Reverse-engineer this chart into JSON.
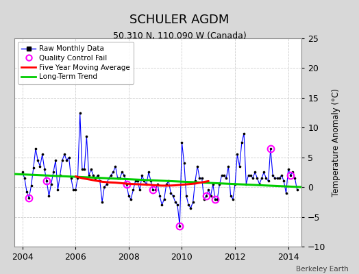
{
  "title": "SCHULER AGDM",
  "subtitle": "50.310 N, 110.090 W (Canada)",
  "ylabel": "Temperature Anomaly (°C)",
  "credit": "Berkeley Earth",
  "ylim": [
    -10,
    25
  ],
  "yticks": [
    -10,
    -5,
    0,
    5,
    10,
    15,
    20,
    25
  ],
  "xlim": [
    2003.7,
    2014.5
  ],
  "xticks": [
    2004,
    2006,
    2008,
    2010,
    2012,
    2014
  ],
  "bg_color": "#d8d8d8",
  "plot_bg_color": "#ffffff",
  "grid_color": "#cccccc",
  "raw_color": "#0000ff",
  "raw_marker_color": "#000000",
  "ma_color": "#ff0000",
  "trend_color": "#00cc00",
  "qc_color": "#ff00ff",
  "raw_x": [
    2004.0,
    2004.083,
    2004.167,
    2004.25,
    2004.333,
    2004.417,
    2004.5,
    2004.583,
    2004.667,
    2004.75,
    2004.833,
    2004.917,
    2005.0,
    2005.083,
    2005.167,
    2005.25,
    2005.333,
    2005.417,
    2005.5,
    2005.583,
    2005.667,
    2005.75,
    2005.833,
    2005.917,
    2006.0,
    2006.083,
    2006.167,
    2006.25,
    2006.333,
    2006.417,
    2006.5,
    2006.583,
    2006.667,
    2006.75,
    2006.833,
    2006.917,
    2007.0,
    2007.083,
    2007.167,
    2007.25,
    2007.333,
    2007.417,
    2007.5,
    2007.583,
    2007.667,
    2007.75,
    2007.833,
    2007.917,
    2008.0,
    2008.083,
    2008.167,
    2008.25,
    2008.333,
    2008.417,
    2008.5,
    2008.583,
    2008.667,
    2008.75,
    2008.833,
    2008.917,
    2009.0,
    2009.083,
    2009.167,
    2009.25,
    2009.333,
    2009.417,
    2009.5,
    2009.583,
    2009.667,
    2009.75,
    2009.833,
    2009.917,
    2010.0,
    2010.083,
    2010.167,
    2010.25,
    2010.333,
    2010.417,
    2010.5,
    2010.583,
    2010.667,
    2010.75,
    2010.833,
    2010.917,
    2011.0,
    2011.083,
    2011.167,
    2011.25,
    2011.333,
    2011.417,
    2011.5,
    2011.583,
    2011.667,
    2011.75,
    2011.833,
    2011.917,
    2012.0,
    2012.083,
    2012.167,
    2012.25,
    2012.333,
    2012.417,
    2012.5,
    2012.583,
    2012.667,
    2012.75,
    2012.833,
    2012.917,
    2013.0,
    2013.083,
    2013.167,
    2013.25,
    2013.333,
    2013.417,
    2013.5,
    2013.583,
    2013.667,
    2013.75,
    2013.833,
    2013.917,
    2014.0,
    2014.083,
    2014.167,
    2014.25,
    2014.333
  ],
  "raw_y": [
    2.5,
    1.5,
    -0.8,
    -1.8,
    0.2,
    3.2,
    6.5,
    4.5,
    3.5,
    5.5,
    3.0,
    1.0,
    -1.5,
    0.5,
    2.5,
    4.5,
    -0.5,
    2.0,
    4.5,
    5.5,
    4.5,
    5.0,
    1.5,
    -0.5,
    -0.5,
    1.5,
    12.5,
    3.0,
    3.0,
    8.5,
    2.0,
    3.0,
    2.0,
    1.5,
    2.0,
    1.0,
    -2.5,
    0.0,
    0.5,
    1.5,
    2.0,
    2.5,
    3.5,
    1.5,
    1.5,
    2.5,
    2.0,
    0.5,
    -1.5,
    -2.0,
    -0.5,
    1.0,
    1.0,
    -0.5,
    2.0,
    1.0,
    0.5,
    2.5,
    1.0,
    -0.5,
    -0.5,
    0.5,
    -1.5,
    -3.0,
    -2.0,
    0.5,
    1.0,
    -1.0,
    -1.5,
    -2.5,
    -3.0,
    -6.5,
    7.5,
    4.0,
    -1.5,
    -3.0,
    -3.5,
    -2.5,
    1.0,
    3.5,
    1.5,
    1.5,
    -2.0,
    -1.5,
    -0.5,
    -1.5,
    0.5,
    -2.0,
    -2.0,
    0.5,
    2.0,
    2.0,
    1.5,
    3.5,
    -1.5,
    -2.0,
    0.5,
    5.5,
    3.5,
    7.5,
    9.0,
    0.5,
    2.0,
    2.0,
    1.5,
    2.5,
    1.5,
    0.5,
    1.5,
    2.5,
    1.5,
    1.0,
    6.5,
    2.0,
    1.5,
    1.5,
    1.5,
    2.0,
    1.0,
    -1.0,
    3.0,
    2.0,
    2.5,
    1.5,
    -0.5
  ],
  "qc_fail_x": [
    2004.25,
    2004.917,
    2007.917,
    2008.917,
    2009.917,
    2010.917,
    2011.25,
    2013.333,
    2014.083
  ],
  "qc_fail_y": [
    -1.8,
    1.0,
    0.5,
    -0.5,
    -6.5,
    -1.5,
    -2.0,
    6.5,
    2.0
  ],
  "ma_x": [
    2006.0,
    2006.25,
    2006.5,
    2006.75,
    2007.0,
    2007.25,
    2007.5,
    2007.75,
    2008.0,
    2008.25,
    2008.5,
    2008.75,
    2009.0,
    2009.25,
    2009.5,
    2009.75,
    2010.0,
    2010.25,
    2010.5,
    2010.75,
    2011.0
  ],
  "ma_y": [
    1.8,
    1.5,
    1.3,
    1.1,
    0.9,
    0.8,
    0.75,
    0.65,
    0.55,
    0.5,
    0.45,
    0.4,
    0.3,
    0.25,
    0.25,
    0.3,
    0.4,
    0.5,
    0.6,
    0.8,
    1.0
  ],
  "trend_x": [
    2003.7,
    2014.5
  ],
  "trend_y": [
    2.2,
    0.0
  ]
}
